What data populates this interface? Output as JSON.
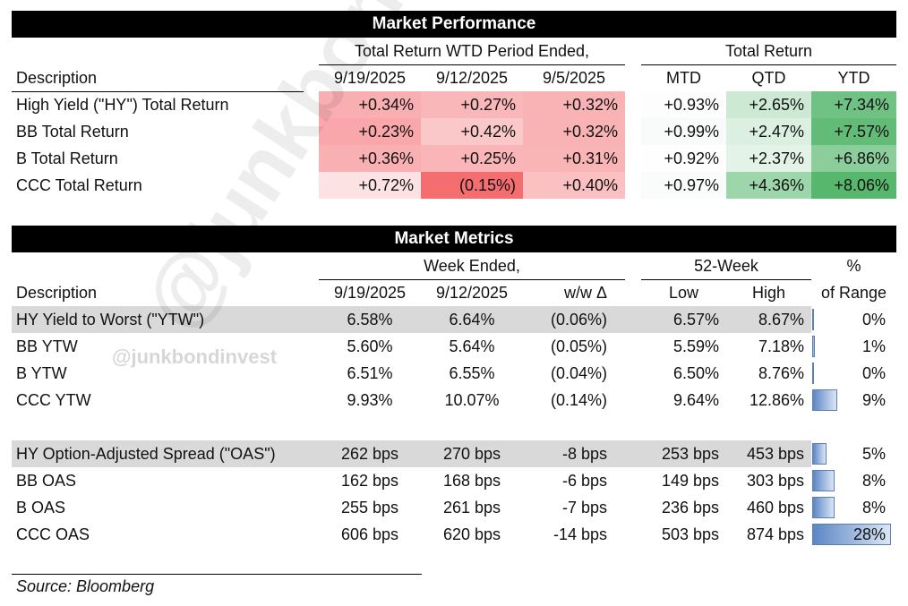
{
  "performance": {
    "title": "Market Performance",
    "group_wtd": "Total Return WTD Period Ended,",
    "group_total": "Total Return",
    "col_description": "Description",
    "dates": [
      "9/19/2025",
      "9/12/2025",
      "9/5/2025"
    ],
    "periods": [
      "MTD",
      "QTD",
      "YTD"
    ],
    "rows": [
      {
        "label": "High Yield (\"HY\") Total Return",
        "wtd": [
          "+0.34%",
          "+0.27%",
          "+0.32%"
        ],
        "tr": [
          "+0.93%",
          "+2.65%",
          "+7.34%"
        ]
      },
      {
        "label": "BB Total Return",
        "wtd": [
          "+0.23%",
          "+0.42%",
          "+0.32%"
        ],
        "tr": [
          "+0.99%",
          "+2.47%",
          "+7.57%"
        ]
      },
      {
        "label": "B Total Return",
        "wtd": [
          "+0.36%",
          "+0.25%",
          "+0.31%"
        ],
        "tr": [
          "+0.92%",
          "+2.37%",
          "+6.86%"
        ]
      },
      {
        "label": "CCC Total Return",
        "wtd": [
          "+0.72%",
          "(0.15%)",
          "+0.40%"
        ],
        "tr": [
          "+0.97%",
          "+4.36%",
          "+8.06%"
        ]
      }
    ],
    "colors": {
      "wtd": [
        [
          "#f9aeb1",
          "#f9b7ba",
          "#f9b3b5"
        ],
        [
          "#f9a7aa",
          "#fbc8c9",
          "#f9b3b5"
        ],
        [
          "#f9b0b3",
          "#f9b5b8",
          "#f9b4b6"
        ],
        [
          "#fde2e3",
          "#f56e6f",
          "#fac0c2"
        ]
      ],
      "tr": [
        [
          "#fdfdfe",
          "#cde9d3",
          "#6fc283"
        ],
        [
          "#f8fbf9",
          "#dcf0e1",
          "#62bc78"
        ],
        [
          "#fefefe",
          "#e3f3e7",
          "#8bcd9b"
        ],
        [
          "#fafcfb",
          "#9ed6ab",
          "#56b76d"
        ]
      ]
    }
  },
  "metrics": {
    "title": "Market Metrics",
    "group_week": "Week Ended,",
    "group_52": "52-Week",
    "pct_top": "%",
    "pct_bottom": "of Range",
    "col_description": "Description",
    "cols": [
      "9/19/2025",
      "9/12/2025",
      "w/w Δ",
      "Low",
      "High"
    ],
    "yield_rows": [
      {
        "label": "HY Yield to Worst (\"YTW\")",
        "values": [
          "6.58%",
          "6.64%",
          "(0.06%)",
          "6.57%",
          "8.67%"
        ],
        "pct": "0%",
        "pct_value": 0,
        "highlight": true
      },
      {
        "label": "BB YTW",
        "values": [
          "5.60%",
          "5.64%",
          "(0.05%)",
          "5.59%",
          "7.18%"
        ],
        "pct": "1%",
        "pct_value": 1,
        "highlight": false
      },
      {
        "label": "B YTW",
        "values": [
          "6.51%",
          "6.55%",
          "(0.04%)",
          "6.50%",
          "8.76%"
        ],
        "pct": "0%",
        "pct_value": 0,
        "highlight": false
      },
      {
        "label": "CCC YTW",
        "values": [
          "9.93%",
          "10.07%",
          "(0.14%)",
          "9.64%",
          "12.86%"
        ],
        "pct": "9%",
        "pct_value": 9,
        "highlight": false
      }
    ],
    "spread_rows": [
      {
        "label": "HY Option-Adjusted Spread (\"OAS\")",
        "values": [
          "262 bps",
          "270 bps",
          "-8 bps",
          "253 bps",
          "453 bps"
        ],
        "pct": "5%",
        "pct_value": 5,
        "highlight": true
      },
      {
        "label": "BB OAS",
        "values": [
          "162 bps",
          "168 bps",
          "-6 bps",
          "149 bps",
          "303 bps"
        ],
        "pct": "8%",
        "pct_value": 8,
        "highlight": false
      },
      {
        "label": "B OAS",
        "values": [
          "255 bps",
          "261 bps",
          "-7 bps",
          "236 bps",
          "460 bps"
        ],
        "pct": "8%",
        "pct_value": 8,
        "highlight": false
      },
      {
        "label": "CCC OAS",
        "values": [
          "606 bps",
          "620 bps",
          "-14 bps",
          "503 bps",
          "874 bps"
        ],
        "pct": "28%",
        "pct_value": 28,
        "highlight": false
      }
    ]
  },
  "watermark": "@junkbondinvest",
  "source": "Source: Bloomberg"
}
